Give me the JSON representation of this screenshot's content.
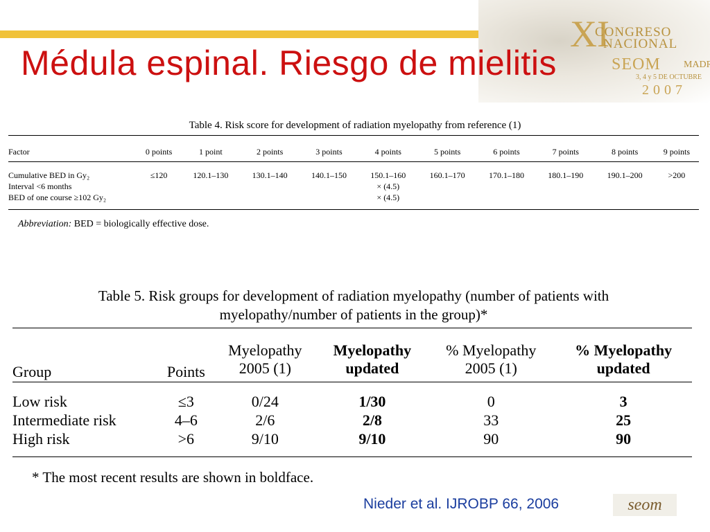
{
  "slide": {
    "title": "Médula espinal. Riesgo de mielitis",
    "citation": "Nieder et al. IJROBP 66, 2006"
  },
  "congress_logo": {
    "roman": "XI",
    "line1": "CONGRESO",
    "line2": "NACIONAL",
    "line3": "SEOM",
    "line4": "MADRID",
    "dates": "3, 4 y 5 DE OCTUBRE",
    "year": "2007"
  },
  "seom_logo": {
    "text": "seom"
  },
  "table4": {
    "caption": "Table 4. Risk score for development of radiation myelopathy from reference (1)",
    "headers": [
      "Factor",
      "0 points",
      "1 point",
      "2 points",
      "3 points",
      "4 points",
      "5 points",
      "6 points",
      "7 points",
      "8 points",
      "9 points"
    ],
    "rows": [
      [
        "Cumulative BED in Gy₂",
        "≤120",
        "120.1–130",
        "130.1–140",
        "140.1–150",
        "150.1–160",
        "160.1–170",
        "170.1–180",
        "180.1–190",
        "190.1–200",
        ">200"
      ],
      [
        "Interval <6 months",
        "",
        "",
        "",
        "",
        "× (4.5)",
        "",
        "",
        "",
        "",
        ""
      ],
      [
        "BED of one course ≥102 Gy₂",
        "",
        "",
        "",
        "",
        "× (4.5)",
        "",
        "",
        "",
        "",
        ""
      ]
    ],
    "abbrev_label": "Abbreviation:",
    "abbrev_text": "BED = biologically effective dose."
  },
  "table5": {
    "caption_line1": "Table 5. Risk groups for development of radiation myelopathy (number of patients with",
    "caption_line2": "myelopathy/number of patients in the group)*",
    "headers": [
      [
        "Group"
      ],
      [
        "Points"
      ],
      [
        "Myelopathy",
        "2005 (1)"
      ],
      [
        "Myelopathy",
        "updated"
      ],
      [
        "% Myelopathy",
        "2005 (1)"
      ],
      [
        "% Myelopathy",
        "updated"
      ]
    ],
    "rows": [
      [
        "Low risk",
        "≤3",
        "0/24",
        "1/30",
        "0",
        "3"
      ],
      [
        "Intermediate risk",
        "4–6",
        "2/6",
        "2/8",
        "33",
        "25"
      ],
      [
        "High risk",
        ">6",
        "9/10",
        "9/10",
        "90",
        "90"
      ]
    ],
    "footnote": "* The most recent results are shown in boldface."
  }
}
